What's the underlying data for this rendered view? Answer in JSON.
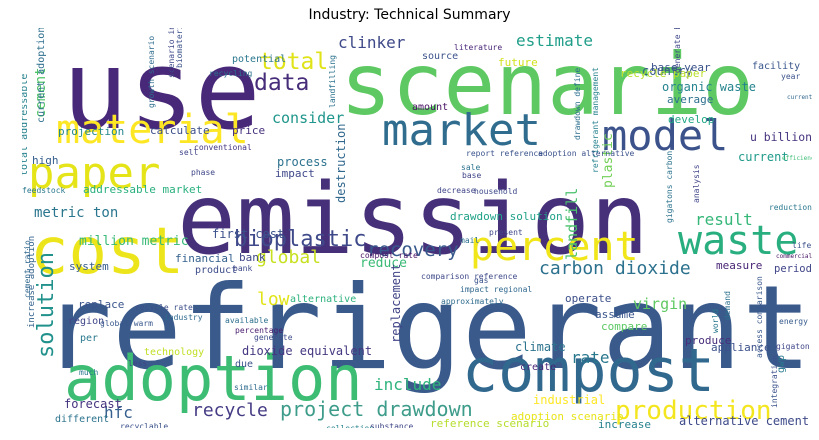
{
  "title": "Industry: Technical Summary",
  "words": [
    {
      "text": "refrigerant",
      "color": "#3a5a8c"
    },
    {
      "text": "emission",
      "color": "#47307a"
    },
    {
      "text": "scenario",
      "color": "#5ec962"
    },
    {
      "text": "use",
      "color": "#482878"
    },
    {
      "text": "compost",
      "color": "#31688e"
    },
    {
      "text": "adoption",
      "color": "#3dbc74"
    },
    {
      "text": "cost",
      "color": "#ede51b"
    },
    {
      "text": "paper",
      "color": "#e5e419"
    },
    {
      "text": "material",
      "color": "#fde725"
    },
    {
      "text": "market",
      "color": "#2f6c8e"
    },
    {
      "text": "model",
      "color": "#3b528b"
    },
    {
      "text": "percent",
      "color": "#f0e61a"
    },
    {
      "text": "waste",
      "color": "#29af7f"
    },
    {
      "text": "production",
      "color": "#f4e61e"
    },
    {
      "text": "solution",
      "color": "#21918c"
    },
    {
      "text": "project drawdown",
      "color": "#3e9c8a"
    },
    {
      "text": "bioplastic",
      "color": "#3f4a8a"
    },
    {
      "text": "carbon dioxide",
      "color": "#2c718e"
    },
    {
      "text": "data",
      "color": "#472c7a"
    },
    {
      "text": "total",
      "color": "#dfe318"
    },
    {
      "text": "recovery",
      "color": "#38598c"
    },
    {
      "text": "global",
      "color": "#c8e020"
    },
    {
      "text": "include",
      "color": "#2fb47c"
    },
    {
      "text": "recycle",
      "color": "#443b84"
    },
    {
      "text": "estimate",
      "color": "#1f9e89"
    },
    {
      "text": "clinker",
      "color": "#3e4989"
    },
    {
      "text": "result",
      "color": "#35b779"
    },
    {
      "text": "consider",
      "color": "#1f968b"
    },
    {
      "text": "low",
      "color": "#e2e418"
    },
    {
      "text": "hfc",
      "color": "#355f8d"
    },
    {
      "text": "metric ton",
      "color": "#2a768e"
    },
    {
      "text": "cement",
      "color": "#52c569"
    },
    {
      "text": "million metric",
      "color": "#38b977"
    },
    {
      "text": "forecast",
      "color": "#46337f"
    },
    {
      "text": "rate",
      "color": "#2a788e"
    },
    {
      "text": "reduce",
      "color": "#3aba76"
    },
    {
      "text": "landfill",
      "color": "#4ac16d"
    },
    {
      "text": "plastic",
      "color": "#73d056"
    },
    {
      "text": "virgin",
      "color": "#5ec962"
    },
    {
      "text": "replacement",
      "color": "#414487"
    },
    {
      "text": "destruction",
      "color": "#31688e"
    },
    {
      "text": "dioxide equivalent",
      "color": "#453781"
    },
    {
      "text": "first cost",
      "color": "#3b528b"
    },
    {
      "text": "drawdown solution",
      "color": "#1fa188"
    },
    {
      "text": "country",
      "color": "#375a8c"
    },
    {
      "text": "organic waste",
      "color": "#25848e"
    },
    {
      "text": "base year",
      "color": "#3b528b"
    },
    {
      "text": "average",
      "color": "#2d708e"
    },
    {
      "text": "develop",
      "color": "#22a785"
    },
    {
      "text": "u billion",
      "color": "#46327e"
    },
    {
      "text": "current",
      "color": "#1f9a8a"
    },
    {
      "text": "reduction",
      "color": "#2a788e"
    },
    {
      "text": "period",
      "color": "#404588"
    },
    {
      "text": "measure",
      "color": "#482475"
    },
    {
      "text": "appliance",
      "color": "#3b518b"
    },
    {
      "text": "industrial",
      "color": "#fde725"
    },
    {
      "text": "reference scenario",
      "color": "#b5de2b"
    },
    {
      "text": "adoption scenario",
      "color": "#e7e419"
    },
    {
      "text": "alternative cement",
      "color": "#3e4a89"
    },
    {
      "text": "increase",
      "color": "#26828e"
    },
    {
      "text": "produce",
      "color": "#472d7b"
    },
    {
      "text": "compare",
      "color": "#5cc863"
    },
    {
      "text": "assume",
      "color": "#39558c"
    },
    {
      "text": "climate",
      "color": "#2c738e"
    },
    {
      "text": "create",
      "color": "#482576"
    },
    {
      "text": "operate",
      "color": "#3c4f8a"
    },
    {
      "text": "alternative",
      "color": "#2db27d"
    },
    {
      "text": "financial",
      "color": "#34618d"
    },
    {
      "text": "bank",
      "color": "#3f4788"
    },
    {
      "text": "system",
      "color": "#365c8d"
    },
    {
      "text": "addressable market",
      "color": "#2ab07f"
    },
    {
      "text": "product",
      "color": "#3d4d8a"
    },
    {
      "text": "projection",
      "color": "#24878e"
    },
    {
      "text": "calculate",
      "color": "#3d4e8a"
    },
    {
      "text": "price",
      "color": "#46317e"
    },
    {
      "text": "process",
      "color": "#2c728e"
    },
    {
      "text": "impact",
      "color": "#3f4889"
    },
    {
      "text": "amount",
      "color": "#471063"
    },
    {
      "text": "potential",
      "color": "#2a778e"
    },
    {
      "text": "source",
      "color": "#3b528b"
    },
    {
      "text": "future",
      "color": "#d2e21b"
    },
    {
      "text": "recycle paper",
      "color": "#b8de29"
    },
    {
      "text": "facility",
      "color": "#39568c"
    },
    {
      "text": "high",
      "color": "#355e8d"
    },
    {
      "text": "current adoption",
      "color": "#2e6f8e"
    },
    {
      "text": "total addressable",
      "color": "#26828e"
    },
    {
      "text": "replace",
      "color": "#3a548c"
    },
    {
      "text": "region",
      "color": "#404688"
    },
    {
      "text": "technology",
      "color": "#c2df23"
    },
    {
      "text": "per",
      "color": "#2a788e"
    },
    {
      "text": "due",
      "color": "#3b528b"
    },
    {
      "text": "different",
      "color": "#2c738e"
    },
    {
      "text": "increase adoption",
      "color": "#33628d"
    },
    {
      "text": "industry",
      "color": "#2f6b8e"
    },
    {
      "text": "global warm",
      "color": "#38588c"
    },
    {
      "text": "recycle rate",
      "color": "#3c4f8a"
    },
    {
      "text": "available",
      "color": "#2d708e"
    },
    {
      "text": "percentage",
      "color": "#481c6e"
    },
    {
      "text": "generate",
      "color": "#3e4c8a"
    },
    {
      "text": "recyclable",
      "color": "#3b528b"
    },
    {
      "text": "collection",
      "color": "#26828e"
    },
    {
      "text": "substance",
      "color": "#3f4788"
    },
    {
      "text": "much",
      "color": "#2a788e"
    },
    {
      "text": "less",
      "color": "#404588"
    },
    {
      "text": "similar",
      "color": "#2f6c8e"
    },
    {
      "text": "efficiency",
      "color": "#3dbc74"
    },
    {
      "text": "demand",
      "color": "#2c718e"
    },
    {
      "text": "energy",
      "color": "#375b8d"
    },
    {
      "text": "gigaton",
      "color": "#3f4889"
    },
    {
      "text": "world",
      "color": "#2a788e"
    },
    {
      "text": "commercial",
      "color": "#471365"
    },
    {
      "text": "life",
      "color": "#3b528b"
    },
    {
      "text": "household",
      "color": "#3e4989"
    },
    {
      "text": "conventional",
      "color": "#453581"
    },
    {
      "text": "recycling",
      "color": "#2d708e"
    },
    {
      "text": "literature",
      "color": "#482677"
    },
    {
      "text": "year",
      "color": "#3b528b"
    },
    {
      "text": "currently",
      "color": "#31688e"
    },
    {
      "text": "phase",
      "color": "#3f4788"
    },
    {
      "text": "sell",
      "color": "#404588"
    },
    {
      "text": "feedstock",
      "color": "#2a788e"
    },
    {
      "text": "cement ratio",
      "color": "#31688e"
    },
    {
      "text": "biomaterial",
      "color": "#3b528b"
    },
    {
      "text": "growth scenario",
      "color": "#2f6c8e"
    },
    {
      "text": "scenario in adoption",
      "color": "#3e4989"
    },
    {
      "text": "landfilling",
      "color": "#2c728e"
    },
    {
      "text": "compost rate",
      "color": "#471164"
    },
    {
      "text": "report reference",
      "color": "#3a548c"
    },
    {
      "text": "drawdown define",
      "color": "#2d708e"
    },
    {
      "text": "adoption alternative",
      "color": "#3b528b"
    },
    {
      "text": "refrigerant management",
      "color": "#26828e"
    },
    {
      "text": "generate base",
      "color": "#3f4788"
    },
    {
      "text": "gigatons carbon",
      "color": "#2c738e"
    },
    {
      "text": "analysis",
      "color": "#404588"
    },
    {
      "text": "access comparison",
      "color": "#38588c"
    },
    {
      "text": "integration",
      "color": "#3b528b"
    },
    {
      "text": "comparison reference",
      "color": "#3e4989"
    },
    {
      "text": "approximately",
      "color": "#2f6b8e"
    },
    {
      "text": "decrease",
      "color": "#404688"
    },
    {
      "text": "impact regional",
      "color": "#31688e"
    },
    {
      "text": "gwp",
      "color": "#2a788e"
    },
    {
      "text": "present",
      "color": "#3f4889"
    },
    {
      "text": "mail",
      "color": "#2d708e"
    },
    {
      "text": "base",
      "color": "#404588"
    },
    {
      "text": "gas",
      "color": "#3b528b"
    },
    {
      "text": "sale",
      "color": "#2c728e"
    },
    {
      "text": "bank",
      "color": "#3e4a89"
    }
  ]
}
